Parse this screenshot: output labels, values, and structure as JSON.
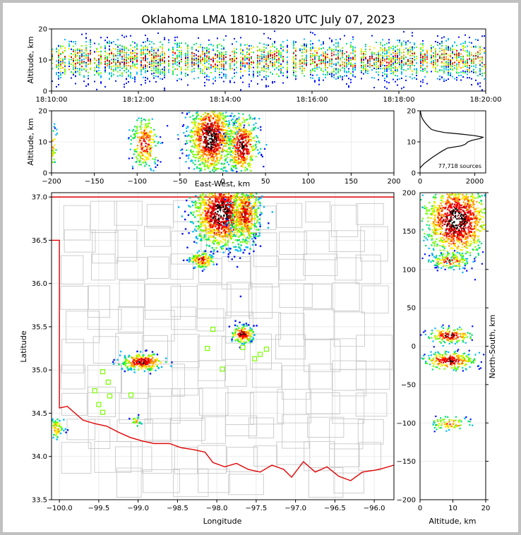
{
  "title": "Oklahoma LMA 1810-1820 UTC July 07, 2023",
  "colors": {
    "boundary": "#c8c8c8",
    "state_line": "#e00000",
    "station": "#7cfc00",
    "grid": "#e6e6e6",
    "palette": [
      "#0010ff",
      "#00b8ff",
      "#00e070",
      "#70ff00",
      "#ffee00",
      "#ff9000",
      "#ff0000",
      "#b00000",
      "#000000",
      "#ffffff"
    ]
  },
  "chart_data": [
    {
      "name": "time-height",
      "type": "heatmap",
      "ylabel": "Altitude, km",
      "ylim": [
        0,
        20
      ],
      "yticks": [
        "0",
        "10",
        "20"
      ],
      "xlim_minutes": [
        0,
        10
      ],
      "xticks": [
        "18:10:00",
        "18:12:00",
        "18:14:00",
        "18:16:00",
        "18:18:00",
        "18:20:00"
      ]
    },
    {
      "name": "east-west-altitude",
      "type": "heatmap",
      "xlabel": "East-West, km",
      "ylabel": "Altitude, km",
      "xlim": [
        -200,
        200
      ],
      "ylim": [
        0,
        20
      ],
      "xticks": [
        "−200",
        "−150",
        "−100",
        "−50",
        "0",
        "50",
        "100",
        "150",
        "200"
      ],
      "yticks": [
        "0",
        "10",
        "20"
      ],
      "clusters": [
        {
          "x": -200,
          "y": 9,
          "rx": 3,
          "ry": 3.5,
          "n": 55,
          "peak": 5
        },
        {
          "x": -92,
          "y": 10,
          "rx": 8,
          "ry": 4.5,
          "n": 230,
          "peak": 7
        },
        {
          "x": -15,
          "y": 11.5,
          "rx": 13,
          "ry": 5.5,
          "n": 1000,
          "peak": 9
        },
        {
          "x": 22,
          "y": 9,
          "rx": 9,
          "ry": 5,
          "n": 450,
          "peak": 8
        }
      ]
    },
    {
      "name": "altitude-histogram",
      "type": "line",
      "xlim": [
        0,
        2400
      ],
      "ylim": [
        0,
        20
      ],
      "xticks": [
        "0",
        "2000"
      ],
      "yticks": [
        "0",
        "10",
        "20"
      ],
      "annotation": "77,718 sources",
      "points": [
        [
          0,
          1.5
        ],
        [
          40,
          2
        ],
        [
          150,
          3
        ],
        [
          300,
          4
        ],
        [
          450,
          5
        ],
        [
          620,
          6
        ],
        [
          800,
          7
        ],
        [
          1000,
          8
        ],
        [
          1500,
          8.7
        ],
        [
          1650,
          9.2
        ],
        [
          1750,
          10
        ],
        [
          1900,
          10.5
        ],
        [
          2200,
          11.1
        ],
        [
          2300,
          11.5
        ],
        [
          2000,
          12
        ],
        [
          1500,
          12.5
        ],
        [
          900,
          13
        ],
        [
          600,
          13.5
        ],
        [
          420,
          14
        ],
        [
          300,
          15
        ],
        [
          200,
          16
        ],
        [
          120,
          17
        ],
        [
          60,
          18
        ],
        [
          30,
          19
        ],
        [
          10,
          20
        ]
      ]
    },
    {
      "name": "plan-view",
      "type": "scatter",
      "xlabel": "Longitude",
      "ylabel": "Latitude",
      "xlim": [
        -100.1,
        -95.75
      ],
      "ylim": [
        33.5,
        37.05
      ],
      "xticks": [
        "−100.0",
        "−99.5",
        "−99.0",
        "−98.5",
        "−98.0",
        "−97.5",
        "−97.0",
        "−96.5",
        "−96.0"
      ],
      "yticks": [
        "33.5",
        "34.0",
        "34.5",
        "35.0",
        "35.5",
        "36.0",
        "36.5",
        "37.0"
      ],
      "clusters": [
        {
          "x": -97.95,
          "y": 36.82,
          "rx": 0.18,
          "ry": 0.2,
          "n": 1000,
          "peak": 9
        },
        {
          "x": -97.65,
          "y": 36.82,
          "rx": 0.1,
          "ry": 0.2,
          "n": 400,
          "peak": 7
        },
        {
          "x": -98.2,
          "y": 36.28,
          "rx": 0.08,
          "ry": 0.05,
          "n": 120,
          "peak": 7
        },
        {
          "x": -97.68,
          "y": 35.42,
          "rx": 0.07,
          "ry": 0.05,
          "n": 140,
          "peak": 8
        },
        {
          "x": -98.95,
          "y": 35.1,
          "rx": 0.14,
          "ry": 0.05,
          "n": 240,
          "peak": 8
        },
        {
          "x": -99.03,
          "y": 34.42,
          "rx": 0.03,
          "ry": 0.03,
          "n": 20,
          "peak": 5
        },
        {
          "x": -100.05,
          "y": 34.33,
          "rx": 0.05,
          "ry": 0.07,
          "n": 60,
          "peak": 5
        }
      ],
      "stations": [
        [
          -98.05,
          35.47
        ],
        [
          -98.12,
          35.25
        ],
        [
          -97.93,
          35.01
        ],
        [
          -97.67,
          35.26
        ],
        [
          -97.52,
          35.13
        ],
        [
          -97.45,
          35.18
        ],
        [
          -97.37,
          35.24
        ],
        [
          -99.45,
          34.98
        ],
        [
          -99.38,
          34.86
        ],
        [
          -99.36,
          34.7
        ],
        [
          -99.55,
          34.76
        ],
        [
          -99.5,
          34.6
        ],
        [
          -99.45,
          34.51
        ],
        [
          -99.09,
          34.71
        ]
      ]
    },
    {
      "name": "north-south-altitude",
      "type": "heatmap",
      "xlabel": "Altitude, km",
      "ylabel": "North-South, km",
      "xlim": [
        0,
        20
      ],
      "ylim": [
        -200,
        200
      ],
      "xticks": [
        "0",
        "10",
        "20"
      ],
      "yticks": [
        "−200",
        "−150",
        "−100",
        "−50",
        "0",
        "50",
        "100",
        "150",
        "200"
      ],
      "clusters": [
        {
          "x": 11,
          "y": 165,
          "rx": 5,
          "ry": 25,
          "n": 1200,
          "peak": 9
        },
        {
          "x": 9,
          "y": 112,
          "rx": 3,
          "ry": 5,
          "n": 120,
          "peak": 7
        },
        {
          "x": 9,
          "y": 15,
          "rx": 3.5,
          "ry": 5,
          "n": 160,
          "peak": 8
        },
        {
          "x": 9,
          "y": -18,
          "rx": 4,
          "ry": 6,
          "n": 260,
          "peak": 8
        },
        {
          "x": 9,
          "y": -100,
          "rx": 3,
          "ry": 5,
          "n": 80,
          "peak": 6
        }
      ]
    }
  ]
}
